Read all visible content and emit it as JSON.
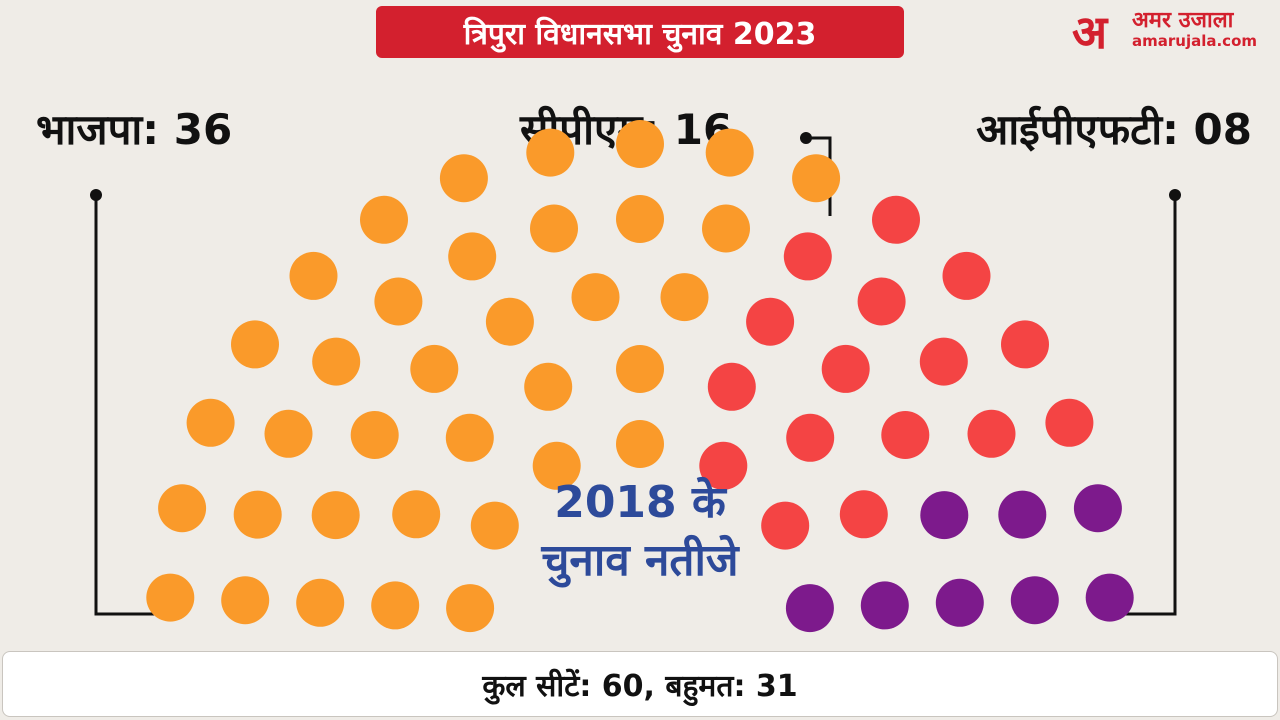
{
  "header": {
    "title": "त्रिपुरा विधानसभा चुनाव 2023"
  },
  "brand": {
    "mark": "अ",
    "name": "अमर उजाला",
    "url": "amarujala.com",
    "color": "#d3202e"
  },
  "caption": {
    "line1": "2018 के",
    "line2": "चुनाव नतीजे"
  },
  "footer": {
    "text": "कुल सीटें: 60, बहुमत: 31"
  },
  "chart_data": {
    "type": "parliament",
    "title": "त्रिपुरा विधानसभा चुनाव 2023",
    "total_seats": 60,
    "majority": 31,
    "series": [
      {
        "name": "भाजपा",
        "label": "भाजपा: 36",
        "value": 36,
        "color": "#fa9a2a"
      },
      {
        "name": "सीपीएम",
        "label": "सीपीएम: 16",
        "value": 16,
        "color": "#f44444"
      },
      {
        "name": "आईपीएफटी",
        "label": "आईपीएफटी: 08",
        "value": 8,
        "color": "#7d1a8c"
      }
    ]
  }
}
